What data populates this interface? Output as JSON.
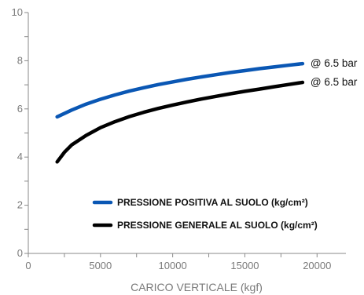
{
  "chart_data": {
    "type": "line",
    "xlabel": "CARICO VERTICALE (kgf)",
    "ylabel": "",
    "xlim": [
      0,
      22000
    ],
    "ylim": [
      0,
      10
    ],
    "x_ticks": [
      "0",
      "5000",
      "10000",
      "15000",
      "20000"
    ],
    "y_ticks": [
      "0",
      "2",
      "4",
      "6",
      "8",
      "10"
    ],
    "grid": false,
    "legend_position": "lower-right",
    "series": [
      {
        "name": "PRESSIONE POSITIVA AL SUOLO (kg/cm²)",
        "color": "#0a57b4",
        "end_label": "@ 6.5 bar",
        "x": [
          2000,
          3000,
          4000,
          5000,
          6000,
          7000,
          8000,
          9000,
          10000,
          11000,
          12000,
          13000,
          14000,
          15000,
          16000,
          17000,
          18000,
          19000
        ],
        "y": [
          5.67,
          5.95,
          6.2,
          6.4,
          6.58,
          6.74,
          6.88,
          7.01,
          7.12,
          7.23,
          7.33,
          7.42,
          7.51,
          7.59,
          7.67,
          7.74,
          7.81,
          7.88
        ]
      },
      {
        "name": "PRESSIONE GENERALE AL SUOLO (kg/cm²)",
        "color": "#000000",
        "end_label": "@ 6.5 bar",
        "x": [
          2000,
          2500,
          3000,
          4000,
          5000,
          6000,
          7000,
          8000,
          9000,
          10000,
          11000,
          12000,
          13000,
          14000,
          15000,
          16000,
          17000,
          18000,
          19000
        ],
        "y": [
          3.8,
          4.2,
          4.5,
          4.9,
          5.22,
          5.47,
          5.68,
          5.86,
          6.02,
          6.16,
          6.29,
          6.41,
          6.52,
          6.63,
          6.73,
          6.82,
          6.92,
          7.01,
          7.1
        ]
      }
    ]
  }
}
